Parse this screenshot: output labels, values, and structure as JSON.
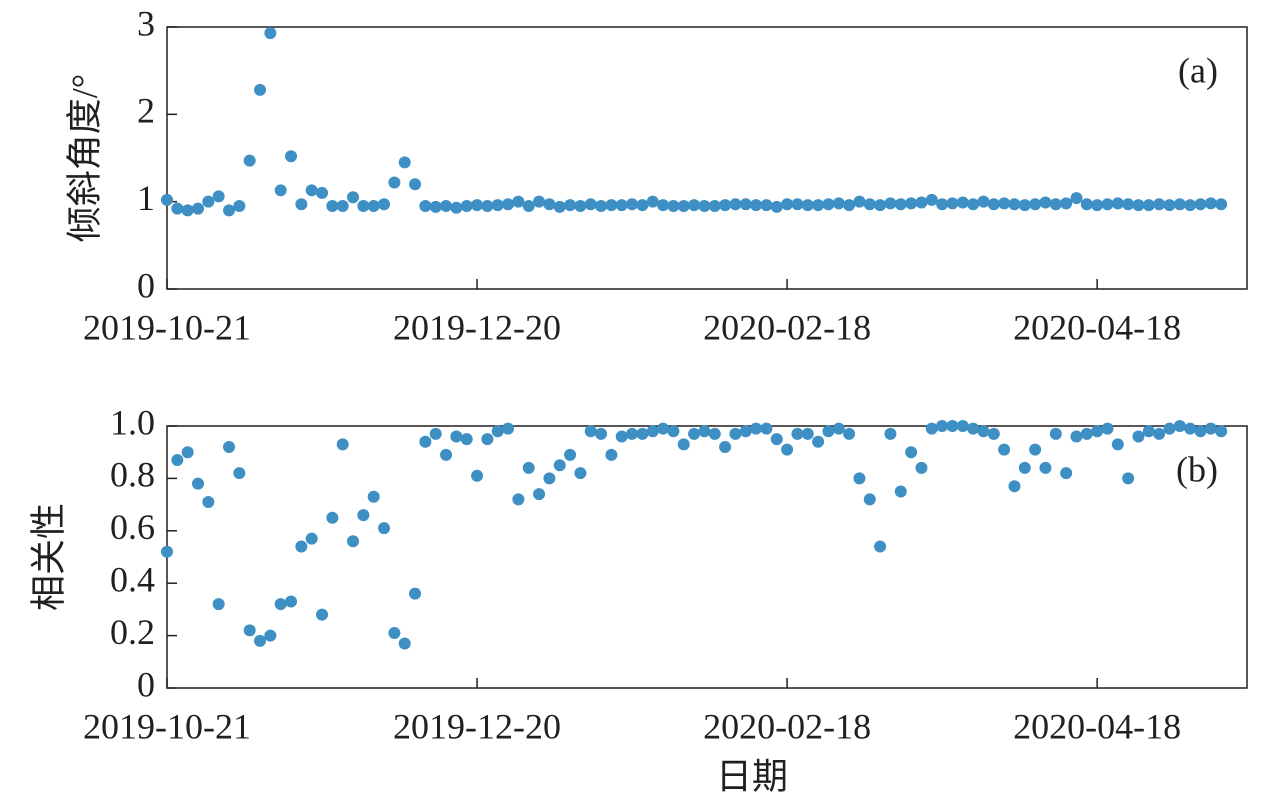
{
  "chart_data": [
    {
      "type": "scatter",
      "annotation": "(a)",
      "ylabel": "倾斜角度/°",
      "color": "#3d8fc4",
      "xlim": [
        "2019-10-21",
        "2020-05-17"
      ],
      "xticks": [
        "2019-10-21",
        "2019-12-20",
        "2020-02-18",
        "2020-04-18"
      ],
      "ylim": [
        0,
        3
      ],
      "yticks": [
        0,
        1,
        2,
        3
      ],
      "x": [
        "2019-10-21",
        "2019-10-23",
        "2019-10-25",
        "2019-10-27",
        "2019-10-29",
        "2019-10-31",
        "2019-11-02",
        "2019-11-04",
        "2019-11-06",
        "2019-11-08",
        "2019-11-10",
        "2019-11-12",
        "2019-11-14",
        "2019-11-16",
        "2019-11-18",
        "2019-11-20",
        "2019-11-22",
        "2019-11-24",
        "2019-11-26",
        "2019-11-28",
        "2019-11-30",
        "2019-12-02",
        "2019-12-04",
        "2019-12-06",
        "2019-12-08",
        "2019-12-10",
        "2019-12-12",
        "2019-12-14",
        "2019-12-16",
        "2019-12-18",
        "2019-12-20",
        "2019-12-22",
        "2019-12-24",
        "2019-12-26",
        "2019-12-28",
        "2019-12-30",
        "2020-01-01",
        "2020-01-03",
        "2020-01-05",
        "2020-01-07",
        "2020-01-09",
        "2020-01-11",
        "2020-01-13",
        "2020-01-15",
        "2020-01-17",
        "2020-01-19",
        "2020-01-21",
        "2020-01-23",
        "2020-01-25",
        "2020-01-27",
        "2020-01-29",
        "2020-01-31",
        "2020-02-02",
        "2020-02-04",
        "2020-02-06",
        "2020-02-08",
        "2020-02-10",
        "2020-02-12",
        "2020-02-14",
        "2020-02-16",
        "2020-02-18",
        "2020-02-20",
        "2020-02-22",
        "2020-02-24",
        "2020-02-26",
        "2020-02-28",
        "2020-03-01",
        "2020-03-03",
        "2020-03-05",
        "2020-03-07",
        "2020-03-09",
        "2020-03-11",
        "2020-03-13",
        "2020-03-15",
        "2020-03-17",
        "2020-03-19",
        "2020-03-21",
        "2020-03-23",
        "2020-03-25",
        "2020-03-27",
        "2020-03-29",
        "2020-03-31",
        "2020-04-02",
        "2020-04-04",
        "2020-04-06",
        "2020-04-08",
        "2020-04-10",
        "2020-04-12",
        "2020-04-14",
        "2020-04-16",
        "2020-04-18",
        "2020-04-20",
        "2020-04-22",
        "2020-04-24",
        "2020-04-26",
        "2020-04-28",
        "2020-04-30",
        "2020-05-02",
        "2020-05-04",
        "2020-05-06",
        "2020-05-08",
        "2020-05-10",
        "2020-05-12"
      ],
      "values": [
        1.02,
        0.92,
        0.9,
        0.92,
        1.0,
        1.06,
        0.9,
        0.95,
        1.47,
        2.28,
        2.93,
        1.13,
        1.52,
        0.97,
        1.13,
        1.1,
        0.95,
        0.95,
        1.05,
        0.95,
        0.95,
        0.97,
        1.22,
        1.45,
        1.2,
        0.95,
        0.94,
        0.95,
        0.93,
        0.95,
        0.96,
        0.95,
        0.96,
        0.97,
        1.0,
        0.95,
        1.0,
        0.97,
        0.94,
        0.96,
        0.95,
        0.97,
        0.95,
        0.96,
        0.96,
        0.97,
        0.96,
        1.0,
        0.96,
        0.95,
        0.95,
        0.96,
        0.95,
        0.95,
        0.96,
        0.97,
        0.97,
        0.96,
        0.96,
        0.94,
        0.97,
        0.97,
        0.96,
        0.96,
        0.97,
        0.98,
        0.96,
        1.0,
        0.97,
        0.96,
        0.98,
        0.97,
        0.98,
        0.99,
        1.02,
        0.97,
        0.98,
        0.99,
        0.97,
        1.0,
        0.97,
        0.98,
        0.97,
        0.96,
        0.97,
        0.99,
        0.97,
        0.98,
        1.04,
        0.97,
        0.96,
        0.97,
        0.98,
        0.97,
        0.96,
        0.96,
        0.97,
        0.96,
        0.97,
        0.96,
        0.97,
        0.98,
        0.97
      ]
    },
    {
      "type": "scatter",
      "annotation": "(b)",
      "ylabel": "相关性",
      "xlabel": "日期",
      "color": "#3d8fc4",
      "xlim": [
        "2019-10-21",
        "2020-05-17"
      ],
      "xticks": [
        "2019-10-21",
        "2019-12-20",
        "2020-02-18",
        "2020-04-18"
      ],
      "ylim": [
        0,
        1
      ],
      "yticks": [
        0,
        0.2,
        0.4,
        0.6,
        0.8,
        {
          "value": 1,
          "label": "1.0"
        }
      ],
      "x": [
        "2019-10-21",
        "2019-10-23",
        "2019-10-25",
        "2019-10-27",
        "2019-10-29",
        "2019-10-31",
        "2019-11-02",
        "2019-11-04",
        "2019-11-06",
        "2019-11-08",
        "2019-11-10",
        "2019-11-12",
        "2019-11-14",
        "2019-11-16",
        "2019-11-18",
        "2019-11-20",
        "2019-11-22",
        "2019-11-24",
        "2019-11-26",
        "2019-11-28",
        "2019-11-30",
        "2019-12-02",
        "2019-12-04",
        "2019-12-06",
        "2019-12-08",
        "2019-12-10",
        "2019-12-12",
        "2019-12-14",
        "2019-12-16",
        "2019-12-18",
        "2019-12-20",
        "2019-12-22",
        "2019-12-24",
        "2019-12-26",
        "2019-12-28",
        "2019-12-30",
        "2020-01-01",
        "2020-01-03",
        "2020-01-05",
        "2020-01-07",
        "2020-01-09",
        "2020-01-11",
        "2020-01-13",
        "2020-01-15",
        "2020-01-17",
        "2020-01-19",
        "2020-01-21",
        "2020-01-23",
        "2020-01-25",
        "2020-01-27",
        "2020-01-29",
        "2020-01-31",
        "2020-02-02",
        "2020-02-04",
        "2020-02-06",
        "2020-02-08",
        "2020-02-10",
        "2020-02-12",
        "2020-02-14",
        "2020-02-16",
        "2020-02-18",
        "2020-02-20",
        "2020-02-22",
        "2020-02-24",
        "2020-02-26",
        "2020-02-28",
        "2020-03-01",
        "2020-03-03",
        "2020-03-05",
        "2020-03-07",
        "2020-03-09",
        "2020-03-11",
        "2020-03-13",
        "2020-03-15",
        "2020-03-17",
        "2020-03-19",
        "2020-03-21",
        "2020-03-23",
        "2020-03-25",
        "2020-03-27",
        "2020-03-29",
        "2020-03-31",
        "2020-04-02",
        "2020-04-04",
        "2020-04-06",
        "2020-04-08",
        "2020-04-10",
        "2020-04-12",
        "2020-04-14",
        "2020-04-16",
        "2020-04-18",
        "2020-04-20",
        "2020-04-22",
        "2020-04-24",
        "2020-04-26",
        "2020-04-28",
        "2020-04-30",
        "2020-05-02",
        "2020-05-04",
        "2020-05-06",
        "2020-05-08",
        "2020-05-10",
        "2020-05-12"
      ],
      "values": [
        0.52,
        0.87,
        0.9,
        0.78,
        0.71,
        0.32,
        0.92,
        0.82,
        0.22,
        0.18,
        0.2,
        0.32,
        0.33,
        0.54,
        0.57,
        0.28,
        0.65,
        0.93,
        0.56,
        0.66,
        0.73,
        0.61,
        0.21,
        0.17,
        0.36,
        0.94,
        0.97,
        0.89,
        0.96,
        0.95,
        0.81,
        0.95,
        0.98,
        0.99,
        0.72,
        0.84,
        0.74,
        0.8,
        0.85,
        0.89,
        0.82,
        0.98,
        0.97,
        0.89,
        0.96,
        0.97,
        0.97,
        0.98,
        0.99,
        0.98,
        0.93,
        0.97,
        0.98,
        0.97,
        0.92,
        0.97,
        0.98,
        0.99,
        0.99,
        0.95,
        0.91,
        0.97,
        0.97,
        0.94,
        0.98,
        0.99,
        0.97,
        0.8,
        0.72,
        0.54,
        0.97,
        0.75,
        0.9,
        0.84,
        0.99,
        1.0,
        1.0,
        1.0,
        0.99,
        0.98,
        0.97,
        0.91,
        0.77,
        0.84,
        0.91,
        0.84,
        0.97,
        0.82,
        0.96,
        0.97,
        0.98,
        0.99,
        0.93,
        0.8,
        0.96,
        0.98,
        0.97,
        0.99,
        1.0,
        0.99,
        0.98,
        0.99,
        0.98
      ]
    }
  ]
}
